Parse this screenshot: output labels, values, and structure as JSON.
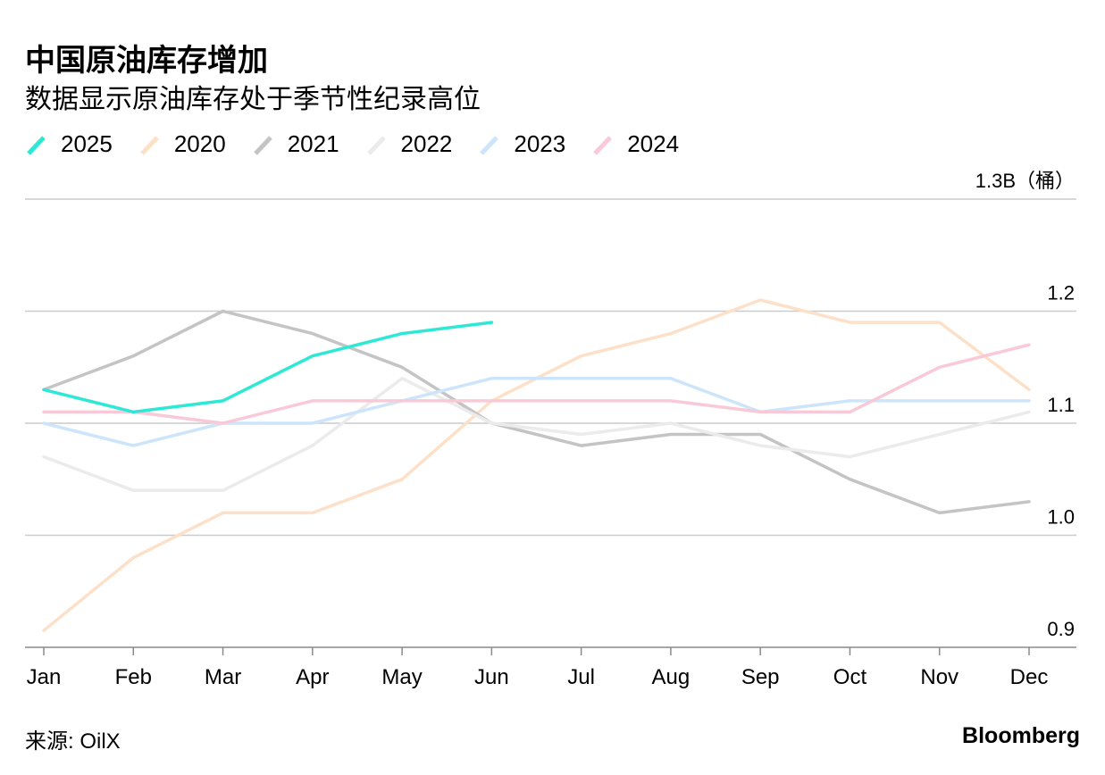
{
  "title": "中国原油库存增加",
  "subtitle": "数据显示原油库存处于季节性纪录高位",
  "source": "来源: OilX",
  "brand": "Bloomberg",
  "chart_data": {
    "type": "line",
    "title": "中国原油库存增加",
    "subtitle": "数据显示原油库存处于季节性纪录高位",
    "xlabel": "",
    "ylabel": "",
    "categories": [
      "Jan",
      "Feb",
      "Mar",
      "Apr",
      "May",
      "Jun",
      "Jul",
      "Aug",
      "Sep",
      "Oct",
      "Nov",
      "Dec"
    ],
    "ylim": [
      0.9,
      1.3
    ],
    "yticks": [
      {
        "value": 0.9,
        "label": "0.9"
      },
      {
        "value": 1.0,
        "label": "1.0"
      },
      {
        "value": 1.1,
        "label": "1.1"
      },
      {
        "value": 1.2,
        "label": "1.2"
      },
      {
        "value": 1.3,
        "label": "1.3B（桶）"
      }
    ],
    "grid": true,
    "legend_position": "top-left",
    "series": [
      {
        "name": "2025",
        "color": "#2ee8d6",
        "values": [
          1.13,
          1.11,
          1.12,
          1.16,
          1.18,
          1.19,
          null,
          null,
          null,
          null,
          null,
          null
        ]
      },
      {
        "name": "2020",
        "color": "#fde0c8",
        "values": [
          0.915,
          0.98,
          1.02,
          1.02,
          1.05,
          1.12,
          1.16,
          1.18,
          1.21,
          1.19,
          1.19,
          1.13
        ]
      },
      {
        "name": "2021",
        "color": "#c4c4c4",
        "values": [
          1.13,
          1.16,
          1.2,
          1.18,
          1.15,
          1.1,
          1.08,
          1.09,
          1.09,
          1.05,
          1.02,
          1.03
        ]
      },
      {
        "name": "2022",
        "color": "#ebebeb",
        "values": [
          1.07,
          1.04,
          1.04,
          1.08,
          1.14,
          1.1,
          1.09,
          1.1,
          1.08,
          1.07,
          1.09,
          1.11
        ]
      },
      {
        "name": "2023",
        "color": "#cde5fb",
        "values": [
          1.1,
          1.08,
          1.1,
          1.1,
          1.12,
          1.14,
          1.14,
          1.14,
          1.11,
          1.12,
          1.12,
          1.12
        ]
      },
      {
        "name": "2024",
        "color": "#f9c9d8",
        "values": [
          1.11,
          1.11,
          1.1,
          1.12,
          1.12,
          1.12,
          1.12,
          1.12,
          1.11,
          1.11,
          1.15,
          1.17
        ]
      }
    ]
  }
}
